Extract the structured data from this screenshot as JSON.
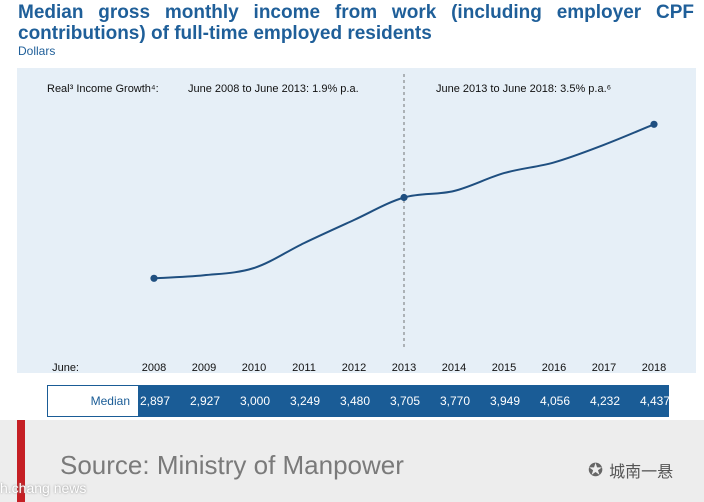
{
  "header": {
    "title": "Median gross monthly income from work (including employer CPF contributions) of full-time employed residents",
    "unit": "Dollars"
  },
  "annotations": {
    "growth_label": "Real³ Income Growth⁴:",
    "period1": "June 2008 to June 2013: 1.9% p.a.",
    "period2": "June 2013 to June 2018: 3.5% p.a.⁶"
  },
  "chart_data": {
    "type": "line",
    "x_prefix": "June:",
    "x": [
      "2008",
      "2009",
      "2010",
      "2011",
      "2012",
      "2013",
      "2014",
      "2015",
      "2016",
      "2017",
      "2018"
    ],
    "series": [
      {
        "values": [
          2897,
          2927,
          3000,
          3249,
          3480,
          3705,
          3770,
          3949,
          4056,
          4232,
          4437
        ]
      }
    ],
    "marked_points": [
      "2008",
      "2013",
      "2018"
    ],
    "divider_at": "2013",
    "ylim": [
      2600,
      4700
    ],
    "grid": false,
    "line_color": "#1f4f80"
  },
  "table": {
    "row_label": "Median",
    "values": [
      "2,897",
      "2,927",
      "3,000",
      "3,249",
      "3,480",
      "3,705",
      "3,770",
      "3,949",
      "4,056",
      "4,232",
      "4,437"
    ]
  },
  "footer": {
    "source": "Source: Ministry of Manpower",
    "watermark_left": "h.chang news",
    "watermark_right": "城南一悬"
  }
}
